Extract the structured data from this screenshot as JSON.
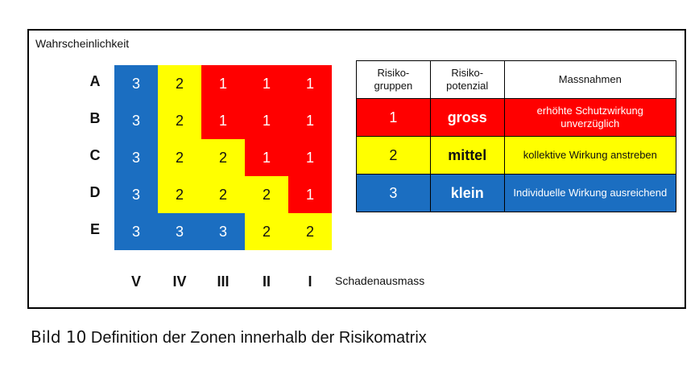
{
  "matrix": {
    "y_axis_title": "Wahrscheinlichkeit",
    "x_axis_title": "Schadenausmass",
    "rows": [
      "A",
      "B",
      "C",
      "D",
      "E"
    ],
    "columns": [
      "V",
      "IV",
      "III",
      "II",
      "I"
    ],
    "values": [
      [
        "3",
        "2",
        "1",
        "1",
        "1"
      ],
      [
        "3",
        "2",
        "1",
        "1",
        "1"
      ],
      [
        "3",
        "2",
        "2",
        "1",
        "1"
      ],
      [
        "3",
        "2",
        "2",
        "2",
        "1"
      ],
      [
        "3",
        "3",
        "3",
        "2",
        "2"
      ]
    ],
    "colors": {
      "1": "#ff0000",
      "2": "#ffff00",
      "3": "#1b6ec1"
    }
  },
  "legend": {
    "headers": [
      "Risiko-\ngruppen",
      "Risiko-\npotenzial",
      "Massnahmen"
    ],
    "rows": [
      {
        "group": "1",
        "potential": "gross",
        "measure": "erhöhte Schutzwirkung unverzüglich"
      },
      {
        "group": "2",
        "potential": "mittel",
        "measure": "kollektive Wirkung anstreben"
      },
      {
        "group": "3",
        "potential": "klein",
        "measure": "Individuelle Wirkung ausreichend"
      }
    ]
  },
  "caption": {
    "number": "Bild 10",
    "text": "Definition der Zonen innerhalb der Risikomatrix"
  }
}
